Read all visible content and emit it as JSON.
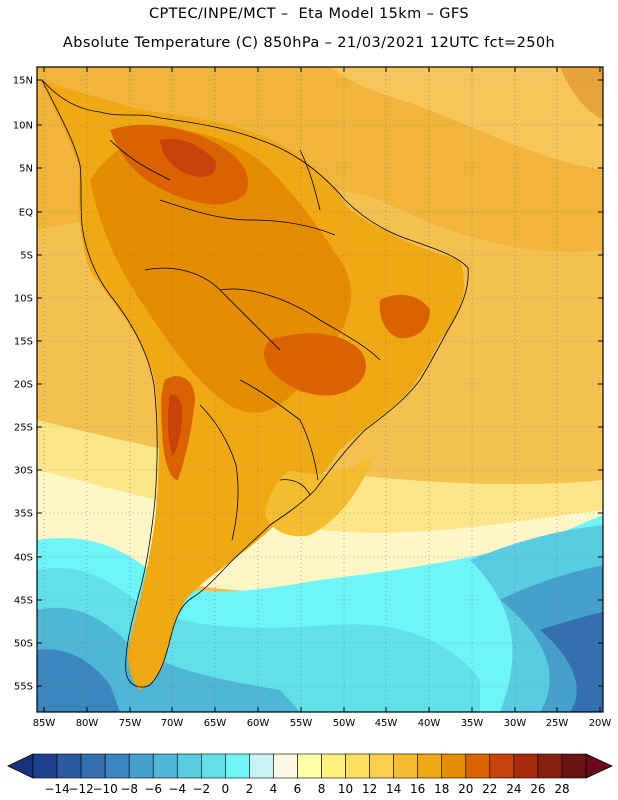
{
  "header": {
    "line1": "CPTEC/INPE/MCT –  Eta Model 15km – GFS",
    "line2": "Absolute Temperature (C) 850hPa – 21/03/2021 12UTC fct=250h"
  },
  "map": {
    "lon_range": [
      -86,
      -20
    ],
    "lat_range": [
      -58,
      17
    ],
    "lat_labels": [
      "15N",
      "10N",
      "5N",
      "EQ",
      "5S",
      "10S",
      "15S",
      "20S",
      "25S",
      "30S",
      "35S",
      "40S",
      "45S",
      "50S",
      "55S"
    ],
    "lon_labels": [
      "85W",
      "80W",
      "75W",
      "70W",
      "65W",
      "60W",
      "55W",
      "50W",
      "45W",
      "40W",
      "35W",
      "30W",
      "25W",
      "20W"
    ],
    "gridlines": "dotted"
  },
  "colorbar": {
    "labels": [
      "-14",
      "-12",
      "-10",
      "-8",
      "-6",
      "-4",
      "-2",
      "0",
      "2",
      "4",
      "6",
      "8",
      "10",
      "12",
      "14",
      "16",
      "18",
      "20",
      "22",
      "24",
      "26",
      "28"
    ],
    "colors": [
      "#1f3f8f",
      "#2c5aa0",
      "#3470b0",
      "#3c86c0",
      "#46a0cc",
      "#4fb6d6",
      "#58cce0",
      "#62e0ea",
      "#6ef6f6",
      "#c8f4f8",
      "#fff8e4",
      "#ffffa8",
      "#fff07c",
      "#fee060",
      "#fbd04a",
      "#f6bc30",
      "#f0a814",
      "#e68c00",
      "#dc6200",
      "#c8420a",
      "#a82a0a",
      "#882012",
      "#6a1414"
    ],
    "under_color": "#1a307a",
    "over_color": "#6a0a1a"
  }
}
